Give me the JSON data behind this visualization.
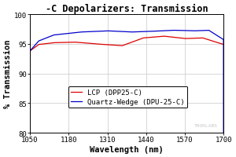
{
  "title": "-C Depolarizers: Transmission",
  "xlabel": "Wavelength (nm)",
  "ylabel": "% Transmission",
  "xlim": [
    1050,
    1700
  ],
  "ylim": [
    80,
    100
  ],
  "xticks": [
    1050,
    1180,
    1310,
    1440,
    1570,
    1700
  ],
  "yticks": [
    80,
    85,
    90,
    95,
    100
  ],
  "background_color": "#ffffff",
  "grid_color": "#c8c8c8",
  "line1_color": "#dd0000",
  "line2_color": "#0000cc",
  "line1_label": "LCP (DPP25-C)",
  "line2_label": "Quartz-Wedge (DPU-25-C)",
  "watermark": "THORLABS",
  "title_fontsize": 8.5,
  "axis_fontsize": 7.5,
  "tick_fontsize": 6.5,
  "legend_fontsize": 6.5
}
